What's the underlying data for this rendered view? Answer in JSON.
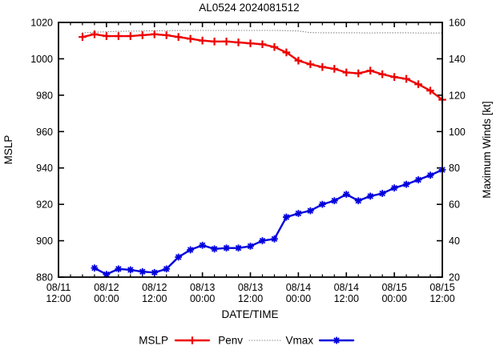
{
  "title": "AL0524 2024081512",
  "axes": {
    "x": {
      "label": "DATE/TIME",
      "tick_labels": [
        {
          "date": "08/11",
          "time": "12:00"
        },
        {
          "date": "08/12",
          "time": "00:00"
        },
        {
          "date": "08/12",
          "time": "12:00"
        },
        {
          "date": "08/13",
          "time": "00:00"
        },
        {
          "date": "08/13",
          "time": "12:00"
        },
        {
          "date": "08/14",
          "time": "00:00"
        },
        {
          "date": "08/14",
          "time": "12:00"
        },
        {
          "date": "08/15",
          "time": "00:00"
        },
        {
          "date": "08/15",
          "time": "12:00"
        }
      ],
      "major_step_hours": 12,
      "minor_step_hours": 3,
      "span_hours": 96
    },
    "y_left": {
      "label": "MSLP",
      "min": 880,
      "max": 1020,
      "step": 20
    },
    "y_right": {
      "label": "Maximum Winds [kt]",
      "min": 20,
      "max": 160,
      "step": 20
    }
  },
  "legend": [
    {
      "label": "MSLP",
      "series": "MSLP"
    },
    {
      "label": "Penv",
      "series": "Penv"
    },
    {
      "label": "Vmax",
      "series": "Vmax"
    }
  ],
  "colors": {
    "mslp": "#ee0000",
    "penv": "#7f7f7f",
    "vmax": "#0000dd",
    "border": "#000000"
  },
  "chart_data": {
    "type": "line",
    "title": "AL0524 2024081512",
    "xlabel": "DATE/TIME",
    "ylabel_left": "MSLP",
    "ylabel_right": "Maximum Winds [kt]",
    "x_range": [
      "08/11 12:00",
      "08/15 12:00"
    ],
    "ylim_left": [
      880,
      1020
    ],
    "ylim_right": [
      20,
      160
    ],
    "grid": "off",
    "legend_position": "below",
    "series": [
      {
        "name": "MSLP",
        "axis": "left",
        "units": "mb",
        "color": "#ee0000",
        "line": "solid",
        "marker": "plus",
        "step_hours": 3,
        "times": [
          "08/11 18:00",
          "08/11 21:00",
          "08/12 00:00",
          "08/12 03:00",
          "08/12 06:00",
          "08/12 09:00",
          "08/12 12:00",
          "08/12 15:00",
          "08/12 18:00",
          "08/12 21:00",
          "08/13 00:00",
          "08/13 03:00",
          "08/13 06:00",
          "08/13 09:00",
          "08/13 12:00",
          "08/13 15:00",
          "08/13 18:00",
          "08/13 21:00",
          "08/14 00:00",
          "08/14 03:00",
          "08/14 06:00",
          "08/14 09:00",
          "08/14 12:00",
          "08/14 15:00",
          "08/14 18:00",
          "08/14 21:00",
          "08/15 00:00",
          "08/15 03:00",
          "08/15 06:00",
          "08/15 09:00",
          "08/15 12:00"
        ],
        "values": [
          1012,
          1013.5,
          1012.5,
          1012.5,
          1012.5,
          1013,
          1013.5,
          1013,
          1012,
          1011,
          1010,
          1009.5,
          1009.5,
          1009,
          1008.5,
          1008,
          1006.5,
          1003.5,
          999,
          997,
          995.5,
          994.5,
          992.5,
          992,
          993.5,
          991.5,
          990,
          989,
          986,
          982.5,
          977.5
        ]
      },
      {
        "name": "Penv",
        "axis": "left",
        "units": "mb",
        "color": "#7f7f7f",
        "line": "dotted",
        "marker": "none",
        "step_hours": 3,
        "times": [
          "08/11 18:00",
          "08/11 21:00",
          "08/12 00:00",
          "08/12 03:00",
          "08/12 06:00",
          "08/12 09:00",
          "08/12 12:00",
          "08/12 15:00",
          "08/12 18:00",
          "08/12 21:00",
          "08/13 00:00",
          "08/13 03:00",
          "08/13 06:00",
          "08/13 09:00",
          "08/13 12:00",
          "08/13 15:00",
          "08/13 18:00",
          "08/13 21:00",
          "08/14 00:00",
          "08/14 03:00",
          "08/14 06:00",
          "08/14 09:00",
          "08/14 12:00",
          "08/14 15:00",
          "08/14 18:00",
          "08/14 21:00",
          "08/15 00:00",
          "08/15 03:00",
          "08/15 06:00",
          "08/15 09:00",
          "08/15 12:00"
        ],
        "values": [
          1014.3,
          1014.6,
          1014.9,
          1015.1,
          1015.2,
          1015.3,
          1015.4,
          1015.5,
          1015.6,
          1015.6,
          1015.6,
          1015.6,
          1015.6,
          1015.6,
          1015.6,
          1015.6,
          1015.6,
          1015.5,
          1015.3,
          1014.4,
          1014.3,
          1014.3,
          1014.3,
          1014.3,
          1014.2,
          1014.3,
          1014.3,
          1014.3,
          1014.2,
          1014.2,
          1014.2
        ]
      },
      {
        "name": "Vmax",
        "axis": "right",
        "units": "kt",
        "color": "#0000dd",
        "line": "solid",
        "marker": "star",
        "step_hours": 3,
        "times": [
          "08/11 21:00",
          "08/12 00:00",
          "08/12 03:00",
          "08/12 06:00",
          "08/12 09:00",
          "08/12 12:00",
          "08/12 15:00",
          "08/12 18:00",
          "08/12 21:00",
          "08/13 00:00",
          "08/13 03:00",
          "08/13 06:00",
          "08/13 09:00",
          "08/13 12:00",
          "08/13 15:00",
          "08/13 18:00",
          "08/13 21:00",
          "08/14 00:00",
          "08/14 03:00",
          "08/14 06:00",
          "08/14 09:00",
          "08/14 12:00",
          "08/14 15:00",
          "08/14 18:00",
          "08/14 21:00",
          "08/15 00:00",
          "08/15 03:00",
          "08/15 06:00",
          "08/15 09:00",
          "08/15 12:00"
        ],
        "values": [
          25,
          21.5,
          24.5,
          24,
          23,
          22.5,
          24.5,
          31,
          35,
          37.5,
          35.5,
          36,
          36,
          37,
          40,
          41,
          53,
          55,
          56.5,
          60,
          62,
          65.5,
          62,
          64.5,
          66,
          69,
          71,
          73.5,
          76,
          79
        ]
      }
    ]
  }
}
